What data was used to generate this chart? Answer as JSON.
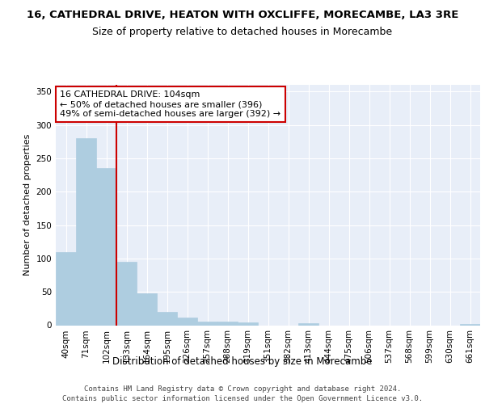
{
  "title1": "16, CATHEDRAL DRIVE, HEATON WITH OXCLIFFE, MORECAMBE, LA3 3RE",
  "title2": "Size of property relative to detached houses in Morecambe",
  "xlabel": "Distribution of detached houses by size in Morecambe",
  "ylabel": "Number of detached properties",
  "categories": [
    "40sqm",
    "71sqm",
    "102sqm",
    "133sqm",
    "164sqm",
    "195sqm",
    "226sqm",
    "257sqm",
    "288sqm",
    "319sqm",
    "351sqm",
    "382sqm",
    "413sqm",
    "444sqm",
    "475sqm",
    "506sqm",
    "537sqm",
    "568sqm",
    "599sqm",
    "630sqm",
    "661sqm"
  ],
  "values": [
    110,
    280,
    235,
    95,
    48,
    20,
    12,
    6,
    5,
    4,
    0,
    0,
    3,
    0,
    0,
    0,
    0,
    0,
    0,
    0,
    2
  ],
  "bar_color": "#aecde0",
  "bar_edgecolor": "#aecde0",
  "vline_x": 2.5,
  "vline_color": "#cc0000",
  "annotation_text": "16 CATHEDRAL DRIVE: 104sqm\n← 50% of detached houses are smaller (396)\n49% of semi-detached houses are larger (392) →",
  "annotation_box_edgecolor": "#cc0000",
  "annotation_box_facecolor": "#ffffff",
  "ylim": [
    0,
    360
  ],
  "yticks": [
    0,
    50,
    100,
    150,
    200,
    250,
    300,
    350
  ],
  "background_color": "#e8eef8",
  "grid_color": "#ffffff",
  "footer": "Contains HM Land Registry data © Crown copyright and database right 2024.\nContains public sector information licensed under the Open Government Licence v3.0.",
  "title1_fontsize": 9.5,
  "title2_fontsize": 9,
  "xlabel_fontsize": 8.5,
  "ylabel_fontsize": 8,
  "tick_fontsize": 7.5,
  "annotation_fontsize": 8,
  "footer_fontsize": 6.5
}
